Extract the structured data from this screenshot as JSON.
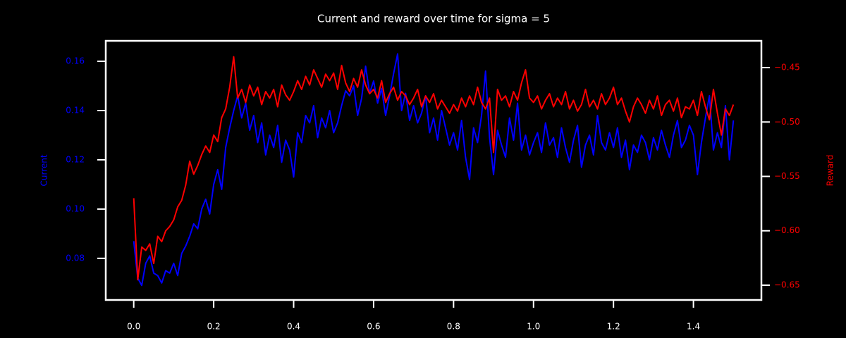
{
  "chart_data": {
    "type": "line",
    "title": "Current and reward over time for sigma = 5",
    "ylabel": "Current",
    "y2label": "Reward",
    "xlim": [
      -0.07,
      1.57
    ],
    "xticks": [
      {
        "value": 0,
        "label": "0.0"
      },
      0.2,
      0.4,
      0.6,
      0.8,
      {
        "value": 1,
        "label": "1.0"
      },
      1.2,
      1.4
    ],
    "ylim": [
      0.0631,
      0.1683
    ],
    "yticks": [
      0.08,
      {
        "value": 0.1,
        "label": "0.10"
      },
      0.12,
      0.14,
      0.16
    ],
    "y2lim": [
      -0.6636,
      -0.4254
    ],
    "y2ticks": [
      {
        "value": -0.65,
        "label": "−0.65"
      },
      {
        "value": -0.6,
        "label": "−0.60"
      },
      {
        "value": -0.55,
        "label": "−0.55"
      },
      {
        "value": -0.5,
        "label": "−0.50"
      },
      {
        "value": -0.45,
        "label": "−0.45"
      }
    ],
    "x": [
      0,
      0.01,
      0.02,
      0.03,
      0.04,
      0.05,
      0.06,
      0.07,
      0.08,
      0.09,
      0.1,
      0.11,
      0.12,
      0.13,
      0.14,
      0.15,
      0.16,
      0.17,
      0.18,
      0.19,
      0.2,
      0.21,
      0.22,
      0.23,
      0.24,
      0.25,
      0.26,
      0.27,
      0.28,
      0.29,
      0.3,
      0.31,
      0.32,
      0.33,
      0.34,
      0.35,
      0.36,
      0.37,
      0.38,
      0.39,
      0.4,
      0.41,
      0.42,
      0.43,
      0.44,
      0.45,
      0.46,
      0.47,
      0.48,
      0.49,
      0.5,
      0.51,
      0.52,
      0.53,
      0.54,
      0.55,
      0.56,
      0.57,
      0.58,
      0.59,
      0.6,
      0.61,
      0.62,
      0.63,
      0.64,
      0.65,
      0.66,
      0.67,
      0.68,
      0.69,
      0.7,
      0.71,
      0.72,
      0.73,
      0.74,
      0.75,
      0.76,
      0.77,
      0.78,
      0.79,
      0.8,
      0.81,
      0.82,
      0.83,
      0.84,
      0.85,
      0.86,
      0.87,
      0.88,
      0.89,
      0.9,
      0.91,
      0.92,
      0.93,
      0.94,
      0.95,
      0.96,
      0.97,
      0.98,
      0.99,
      1,
      1.01,
      1.02,
      1.03,
      1.04,
      1.05,
      1.06,
      1.07,
      1.08,
      1.09,
      1.1,
      1.11,
      1.12,
      1.13,
      1.14,
      1.15,
      1.16,
      1.17,
      1.18,
      1.19,
      1.2,
      1.21,
      1.22,
      1.23,
      1.24,
      1.25,
      1.26,
      1.27,
      1.28,
      1.29,
      1.3,
      1.31,
      1.32,
      1.33,
      1.34,
      1.35,
      1.36,
      1.37,
      1.38,
      1.39,
      1.4,
      1.41,
      1.42,
      1.43,
      1.44,
      1.45,
      1.46,
      1.47,
      1.48,
      1.49,
      1.5
    ],
    "series": [
      {
        "color": "#0000ff",
        "axis": "y",
        "values": [
          0.087,
          0.072,
          0.069,
          0.078,
          0.081,
          0.074,
          0.073,
          0.07,
          0.075,
          0.074,
          0.078,
          0.073,
          0.082,
          0.085,
          0.089,
          0.094,
          0.092,
          0.1,
          0.104,
          0.098,
          0.11,
          0.116,
          0.108,
          0.125,
          0.133,
          0.14,
          0.146,
          0.137,
          0.143,
          0.132,
          0.138,
          0.127,
          0.135,
          0.122,
          0.13,
          0.125,
          0.134,
          0.119,
          0.128,
          0.124,
          0.113,
          0.131,
          0.127,
          0.138,
          0.135,
          0.142,
          0.129,
          0.137,
          0.133,
          0.14,
          0.131,
          0.135,
          0.142,
          0.148,
          0.146,
          0.15,
          0.138,
          0.145,
          0.158,
          0.147,
          0.152,
          0.143,
          0.149,
          0.138,
          0.146,
          0.155,
          0.163,
          0.14,
          0.147,
          0.136,
          0.142,
          0.135,
          0.139,
          0.146,
          0.131,
          0.137,
          0.128,
          0.14,
          0.133,
          0.126,
          0.131,
          0.124,
          0.136,
          0.121,
          0.112,
          0.133,
          0.127,
          0.138,
          0.156,
          0.129,
          0.114,
          0.132,
          0.126,
          0.121,
          0.137,
          0.128,
          0.143,
          0.124,
          0.13,
          0.122,
          0.127,
          0.131,
          0.123,
          0.135,
          0.126,
          0.129,
          0.121,
          0.133,
          0.125,
          0.119,
          0.128,
          0.134,
          0.117,
          0.126,
          0.13,
          0.122,
          0.138,
          0.127,
          0.124,
          0.131,
          0.125,
          0.133,
          0.121,
          0.128,
          0.116,
          0.126,
          0.123,
          0.13,
          0.127,
          0.12,
          0.129,
          0.124,
          0.132,
          0.126,
          0.121,
          0.13,
          0.136,
          0.125,
          0.128,
          0.134,
          0.13,
          0.114,
          0.127,
          0.137,
          0.146,
          0.124,
          0.131,
          0.125,
          0.142,
          0.12,
          0.136
        ]
      },
      {
        "color": "#ff0000",
        "axis": "y2",
        "values": [
          -0.57,
          -0.645,
          -0.615,
          -0.618,
          -0.612,
          -0.63,
          -0.605,
          -0.61,
          -0.6,
          -0.596,
          -0.59,
          -0.578,
          -0.572,
          -0.558,
          -0.536,
          -0.548,
          -0.54,
          -0.53,
          -0.522,
          -0.528,
          -0.512,
          -0.518,
          -0.496,
          -0.488,
          -0.468,
          -0.44,
          -0.478,
          -0.47,
          -0.482,
          -0.466,
          -0.476,
          -0.468,
          -0.484,
          -0.472,
          -0.478,
          -0.47,
          -0.486,
          -0.466,
          -0.475,
          -0.48,
          -0.472,
          -0.462,
          -0.47,
          -0.458,
          -0.466,
          -0.452,
          -0.46,
          -0.468,
          -0.456,
          -0.462,
          -0.455,
          -0.47,
          -0.448,
          -0.464,
          -0.472,
          -0.46,
          -0.468,
          -0.452,
          -0.466,
          -0.474,
          -0.47,
          -0.478,
          -0.462,
          -0.482,
          -0.474,
          -0.468,
          -0.48,
          -0.472,
          -0.476,
          -0.484,
          -0.478,
          -0.47,
          -0.486,
          -0.476,
          -0.482,
          -0.474,
          -0.488,
          -0.48,
          -0.486,
          -0.492,
          -0.484,
          -0.49,
          -0.478,
          -0.486,
          -0.476,
          -0.484,
          -0.468,
          -0.482,
          -0.488,
          -0.478,
          -0.528,
          -0.47,
          -0.48,
          -0.476,
          -0.486,
          -0.472,
          -0.48,
          -0.464,
          -0.452,
          -0.478,
          -0.482,
          -0.476,
          -0.488,
          -0.48,
          -0.474,
          -0.486,
          -0.478,
          -0.484,
          -0.472,
          -0.488,
          -0.48,
          -0.49,
          -0.484,
          -0.47,
          -0.486,
          -0.48,
          -0.488,
          -0.474,
          -0.484,
          -0.478,
          -0.468,
          -0.484,
          -0.478,
          -0.49,
          -0.5,
          -0.486,
          -0.478,
          -0.484,
          -0.492,
          -0.48,
          -0.488,
          -0.476,
          -0.494,
          -0.484,
          -0.48,
          -0.49,
          -0.478,
          -0.496,
          -0.486,
          -0.488,
          -0.48,
          -0.494,
          -0.472,
          -0.486,
          -0.498,
          -0.47,
          -0.492,
          -0.512,
          -0.488,
          -0.494,
          -0.484
        ]
      }
    ]
  }
}
